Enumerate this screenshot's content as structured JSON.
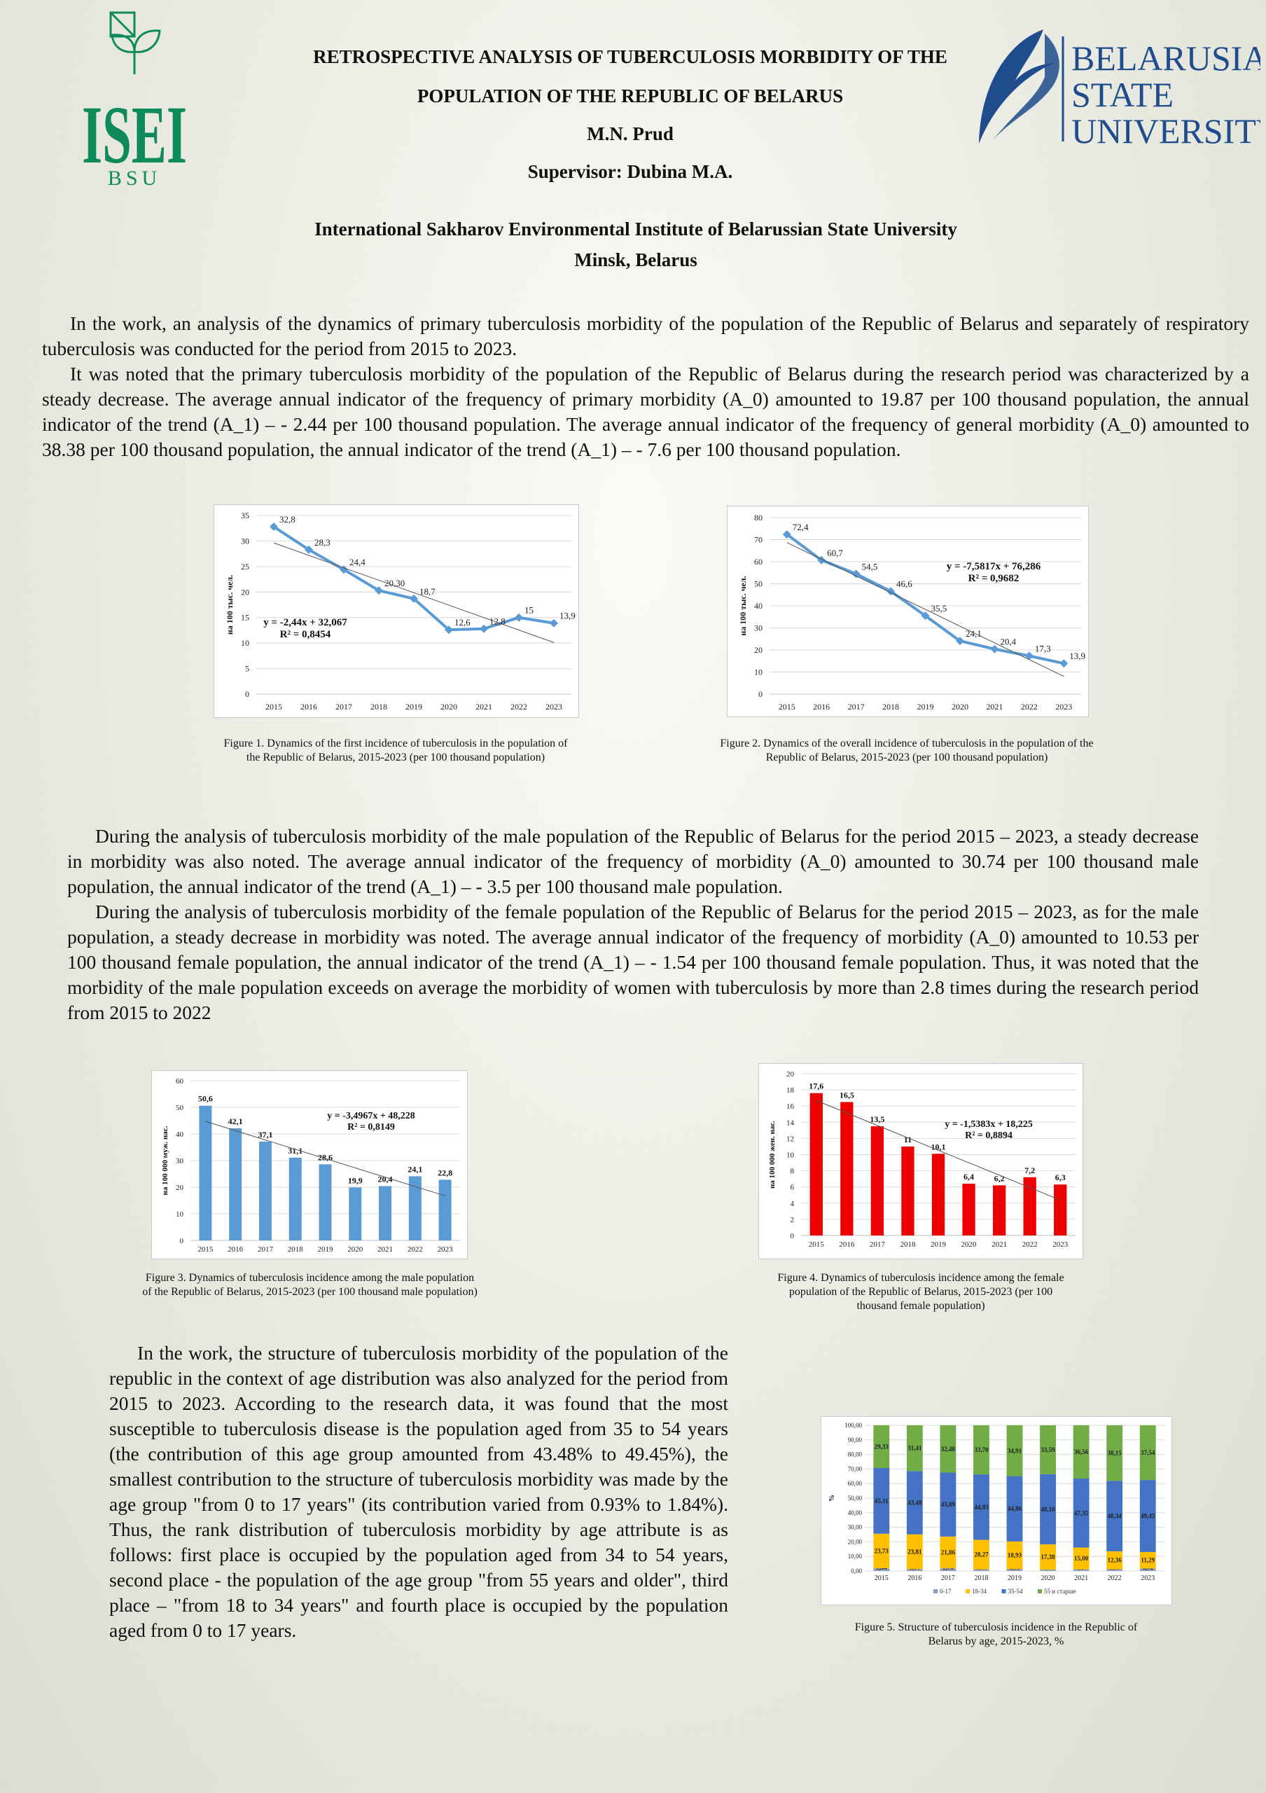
{
  "header": {
    "title_line1": "RETROSPECTIVE ANALYSIS OF TUBERCULOSIS MORBIDITY OF THE",
    "title_line2": "POPULATION OF THE REPUBLIC OF BELARUS",
    "author": "M.N. Prud",
    "supervisor": "Supervisor: Dubina M.A.",
    "institute": "International Sakharov Environmental Institute of Belarussian State University",
    "city": "Minsk, Belarus"
  },
  "logos": {
    "left_text": "ISEI",
    "left_sub": "BSU",
    "right_lines": [
      "BELARUSIAN",
      "STATE",
      "UNIVERSITY"
    ],
    "left_color": "#0f8a5a",
    "right_color": "#1e4c8c"
  },
  "text": {
    "p1": "In the work, an analysis of the dynamics of primary tuberculosis morbidity of the population of the Republic of Belarus and separately of respiratory tuberculosis was conducted for the period from 2015 to 2023.",
    "p2": "It was noted that the primary tuberculosis morbidity of the population of the Republic of Belarus during the research period was characterized by a steady decrease. The average annual indicator of the frequency of primary morbidity (A_0) amounted to 19.87 per 100 thousand population, the annual indicator of the trend (A_1) – - 2.44 per 100 thousand population. The average annual indicator of the frequency of general morbidity (A_0) amounted to 38.38 per 100 thousand population, the annual indicator of the trend (A_1) – - 7.6 per 100 thousand population.",
    "p3": "During the analysis of tuberculosis morbidity of the male population of the Republic of Belarus for the period 2015 – 2023, a steady decrease in morbidity was also noted. The average annual indicator of the frequency of morbidity (A_0) amounted to 30.74 per 100 thousand male population, the annual indicator of the trend (A_1) – - 3.5 per 100 thousand male population.",
    "p4": "During the analysis of tuberculosis morbidity of the female population of the Republic of Belarus for the period 2015 – 2023, as for the male population, a steady decrease in morbidity was noted. The average annual indicator of the frequency of morbidity (A_0) amounted to 10.53 per 100 thousand female population, the annual indicator of the trend (A_1) – - 1.54 per 100 thousand female population. Thus, it was noted that the morbidity of the male population exceeds on average the morbidity of women with tuberculosis by more than 2.8 times during the research period from 2015 to 2022",
    "p5": "In the work, the structure of tuberculosis morbidity of the population of the republic in the context of age distribution was also analyzed for the period from 2015 to 2023. According to the research data, it was found that the most susceptible to tuberculosis disease is the population aged from 35 to 54 years (the contribution of this age group amounted from 43.48% to 49.45%), the smallest contribution to the structure of tuberculosis morbidity was made by the age group \"from 0 to 17 years\" (its contribution varied from 0.93% to 1.84%). Thus, the rank distribution of tuberculosis morbidity by age attribute is as follows: first place is occupied by the population aged from 34 to 54 years, second place - the population of the age group \"from 55 years and older\", third place – \"from 18 to 34 years\" and fourth place is occupied by the population aged from 0 to 17 years."
  },
  "captions": {
    "fig1": "Figure 1. Dynamics of the first incidence of tuberculosis in the population of the Republic of Belarus, 2015-2023 (per 100 thousand population)",
    "fig2": "Figure 2. Dynamics of the overall incidence of tuberculosis in the population of the Republic of Belarus, 2015-2023 (per 100 thousand population)",
    "fig3": "Figure 3. Dynamics of tuberculosis incidence among the male population of the Republic of Belarus, 2015-2023 (per 100 thousand male population)",
    "fig4": "Figure 4. Dynamics of tuberculosis incidence among the female population of the Republic of Belarus, 2015-2023 (per 100 thousand female population)",
    "fig5": "Figure 5. Structure of tuberculosis incidence in the Republic of Belarus by age, 2015-2023, %"
  },
  "chart_data": [
    {
      "id": "fig1",
      "type": "line",
      "categories": [
        "2015",
        "2016",
        "2017",
        "2018",
        "2019",
        "2020",
        "2021",
        "2022",
        "2023"
      ],
      "values": [
        32.8,
        28.3,
        24.4,
        20.3,
        18.7,
        12.6,
        12.8,
        15,
        13.9
      ],
      "data_labels": [
        "32,8",
        "28,3",
        "24,4",
        "20,30",
        "18,7",
        "12,6",
        "12,8",
        "15",
        "13,9"
      ],
      "ylabel": "на 100 тыс. чел.",
      "ylim": [
        0,
        35
      ],
      "yticks": [
        0,
        5,
        10,
        15,
        20,
        25,
        30,
        35
      ],
      "trend_equation": "y = -2,44x + 32,067",
      "r_squared": "R² = 0,8454",
      "color": "#5b9bd5",
      "grid": true
    },
    {
      "id": "fig2",
      "type": "line",
      "categories": [
        "2015",
        "2016",
        "2017",
        "2018",
        "2019",
        "2020",
        "2021",
        "2022",
        "2023"
      ],
      "values": [
        72.4,
        60.7,
        54.5,
        46.6,
        35.5,
        24.1,
        20.4,
        17.3,
        13.9
      ],
      "data_labels": [
        "72,4",
        "60,7",
        "54,5",
        "46,6",
        "35,5",
        "24,1",
        "20,4",
        "17,3",
        "13,9"
      ],
      "ylabel": "на 100 тыс. чел.",
      "ylim": [
        0,
        80
      ],
      "yticks": [
        0,
        10,
        20,
        30,
        40,
        50,
        60,
        70,
        80
      ],
      "trend_equation": "y = -7,5817x + 76,286",
      "r_squared": "R² = 0,9682",
      "color": "#5b9bd5",
      "grid": true
    },
    {
      "id": "fig3",
      "type": "bar",
      "categories": [
        "2015",
        "2016",
        "2017",
        "2018",
        "2019",
        "2020",
        "2021",
        "2022",
        "2023"
      ],
      "values": [
        50.6,
        42.1,
        37.1,
        31.1,
        28.6,
        19.9,
        20.4,
        24.1,
        22.8
      ],
      "data_labels": [
        "50,6",
        "42,1",
        "37,1",
        "31,1",
        "28,6",
        "19,9",
        "20,4",
        "24,1",
        "22,8"
      ],
      "ylabel": "на 100 000 муж. нас.",
      "ylim": [
        0,
        60
      ],
      "yticks": [
        0,
        10,
        20,
        30,
        40,
        50,
        60
      ],
      "trend_equation": "y = -3,4967x + 48,228",
      "r_squared": "R² = 0,8149",
      "color": "#5b9bd5",
      "grid": true
    },
    {
      "id": "fig4",
      "type": "bar",
      "categories": [
        "2015",
        "2016",
        "2017",
        "2018",
        "2019",
        "2020",
        "2021",
        "2022",
        "2023"
      ],
      "values": [
        17.6,
        16.5,
        13.5,
        11,
        10.1,
        6.4,
        6.2,
        7.2,
        6.3
      ],
      "data_labels": [
        "17,6",
        "16,5",
        "13,5",
        "11",
        "10,1",
        "6,4",
        "6,2",
        "7,2",
        "6,3"
      ],
      "ylabel": "на 100 000 жен. нас.",
      "ylim": [
        0,
        20
      ],
      "yticks": [
        0,
        2,
        4,
        6,
        8,
        10,
        12,
        14,
        16,
        18,
        20
      ],
      "trend_equation": "y = -1,5383x + 18,225",
      "r_squared": "R² = 0,8894",
      "color": "#ee0000",
      "grid": true
    },
    {
      "id": "fig5",
      "type": "bar",
      "stacked": true,
      "categories": [
        "2015",
        "2016",
        "2017",
        "2018",
        "2019",
        "2020",
        "2021",
        "2022",
        "2023"
      ],
      "ylabel": "%",
      "ylim": [
        0,
        100
      ],
      "yticks": [
        "0,00",
        "10,00",
        "20,00",
        "30,00",
        "40,00",
        "50,00",
        "60,00",
        "70,00",
        "80,00",
        "90,00",
        "100,00"
      ],
      "series": [
        {
          "name": "0-17",
          "values": [
            1.84,
            1.3,
            1.78,
            1.1,
            1.31,
            0.93,
            1.1,
            1.16,
            1.72
          ],
          "labels": [
            "1,84",
            "1,30",
            "1,78",
            "1,10",
            "1,31",
            "0,93",
            "1,10",
            "1,16",
            "1,72"
          ],
          "color": "#8fa0b8"
        },
        {
          "name": "18-34",
          "values": [
            23.73,
            23.81,
            21.86,
            20.27,
            18.93,
            17.38,
            15.0,
            12.36,
            11.29
          ],
          "labels": [
            "23,73",
            "23,81",
            "21,86",
            "20,27",
            "18,93",
            "17,38",
            "15,00",
            "12,36",
            "11,29"
          ],
          "color": "#ffc000"
        },
        {
          "name": "35-54",
          "values": [
            45.11,
            43.48,
            43.89,
            44.93,
            44.86,
            48.1,
            47.35,
            48.34,
            49.45
          ],
          "labels": [
            "45,11",
            "43,48",
            "43,89",
            "44,93",
            "44,86",
            "48,10",
            "47,35",
            "48,34",
            "49,45"
          ],
          "color": "#4472c4"
        },
        {
          "name": "55 и старше",
          "values": [
            29.33,
            31.41,
            32.48,
            33.7,
            34.91,
            33.59,
            36.56,
            38.15,
            37.54
          ],
          "labels": [
            "29,33",
            "31,41",
            "32,48",
            "33,70",
            "34,91",
            "33,59",
            "36,56",
            "38,15",
            "37,54"
          ],
          "color": "#70ad47"
        }
      ],
      "legend": "bottom",
      "grid": true
    }
  ]
}
